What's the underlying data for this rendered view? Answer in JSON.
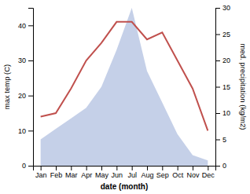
{
  "chart_data": {
    "type": "line",
    "categories": [
      "Jan",
      "Feb",
      "Mar",
      "Apr",
      "May",
      "Jun",
      "Jul",
      "Aug",
      "Sep",
      "Oct",
      "Nov",
      "Dec"
    ],
    "xlabel": "date (month)",
    "ylabel": "max temp (C)",
    "y2label": "med. precipitation (kg/m2)",
    "series": [
      {
        "type": "area",
        "axis": "y2",
        "color": "#c5d0e8",
        "values": [
          5,
          7,
          9,
          11,
          15,
          22,
          30,
          18,
          12,
          6,
          2,
          1
        ]
      },
      {
        "type": "line",
        "color": "#c0504d",
        "values": [
          14,
          15,
          22,
          30,
          35,
          41,
          41,
          36,
          38,
          30,
          22,
          10
        ]
      }
    ],
    "ylim": [
      0,
      45
    ],
    "yticks": [
      0,
      10,
      20,
      30,
      40
    ],
    "y2lim": [
      0,
      30
    ],
    "y2ticks": [
      0,
      5,
      10,
      15,
      20,
      25,
      30
    ],
    "grid": false
  }
}
